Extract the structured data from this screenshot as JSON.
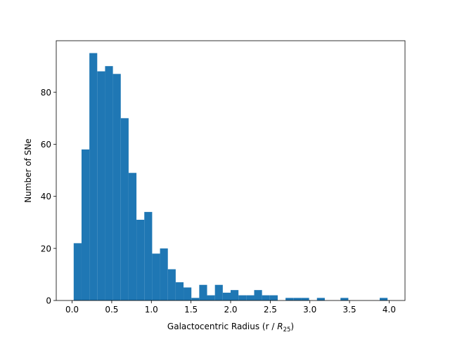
{
  "chart_data": {
    "type": "bar",
    "subtype": "histogram",
    "title": "",
    "xlabel_main": "Galactocentric Radius (r / ",
    "xlabel_sym": "R",
    "xlabel_sub": "25",
    "xlabel_close": ")",
    "ylabel": "Number of SNe",
    "xlim": [
      -0.2,
      4.2
    ],
    "ylim": [
      0,
      99.75
    ],
    "grid": false,
    "color": "#1f77b4",
    "xticks": [
      0.0,
      0.5,
      1.0,
      1.5,
      2.0,
      2.5,
      3.0,
      3.5,
      4.0
    ],
    "xtick_labels": [
      "0.0",
      "0.5",
      "1.0",
      "1.5",
      "2.0",
      "2.5",
      "3.0",
      "3.5",
      "4.0"
    ],
    "yticks": [
      0,
      20,
      40,
      60,
      80
    ],
    "ytick_labels": [
      "0",
      "20",
      "40",
      "60",
      "80"
    ],
    "bin_start": 0.02,
    "bin_width": 0.099,
    "values": [
      22,
      58,
      95,
      88,
      90,
      87,
      70,
      49,
      31,
      34,
      18,
      20,
      12,
      7,
      5,
      1,
      6,
      2,
      6,
      3,
      4,
      2,
      2,
      4,
      2,
      2,
      0,
      1,
      1,
      1,
      0,
      1,
      0,
      0,
      1,
      0,
      0,
      0,
      0,
      1
    ]
  }
}
